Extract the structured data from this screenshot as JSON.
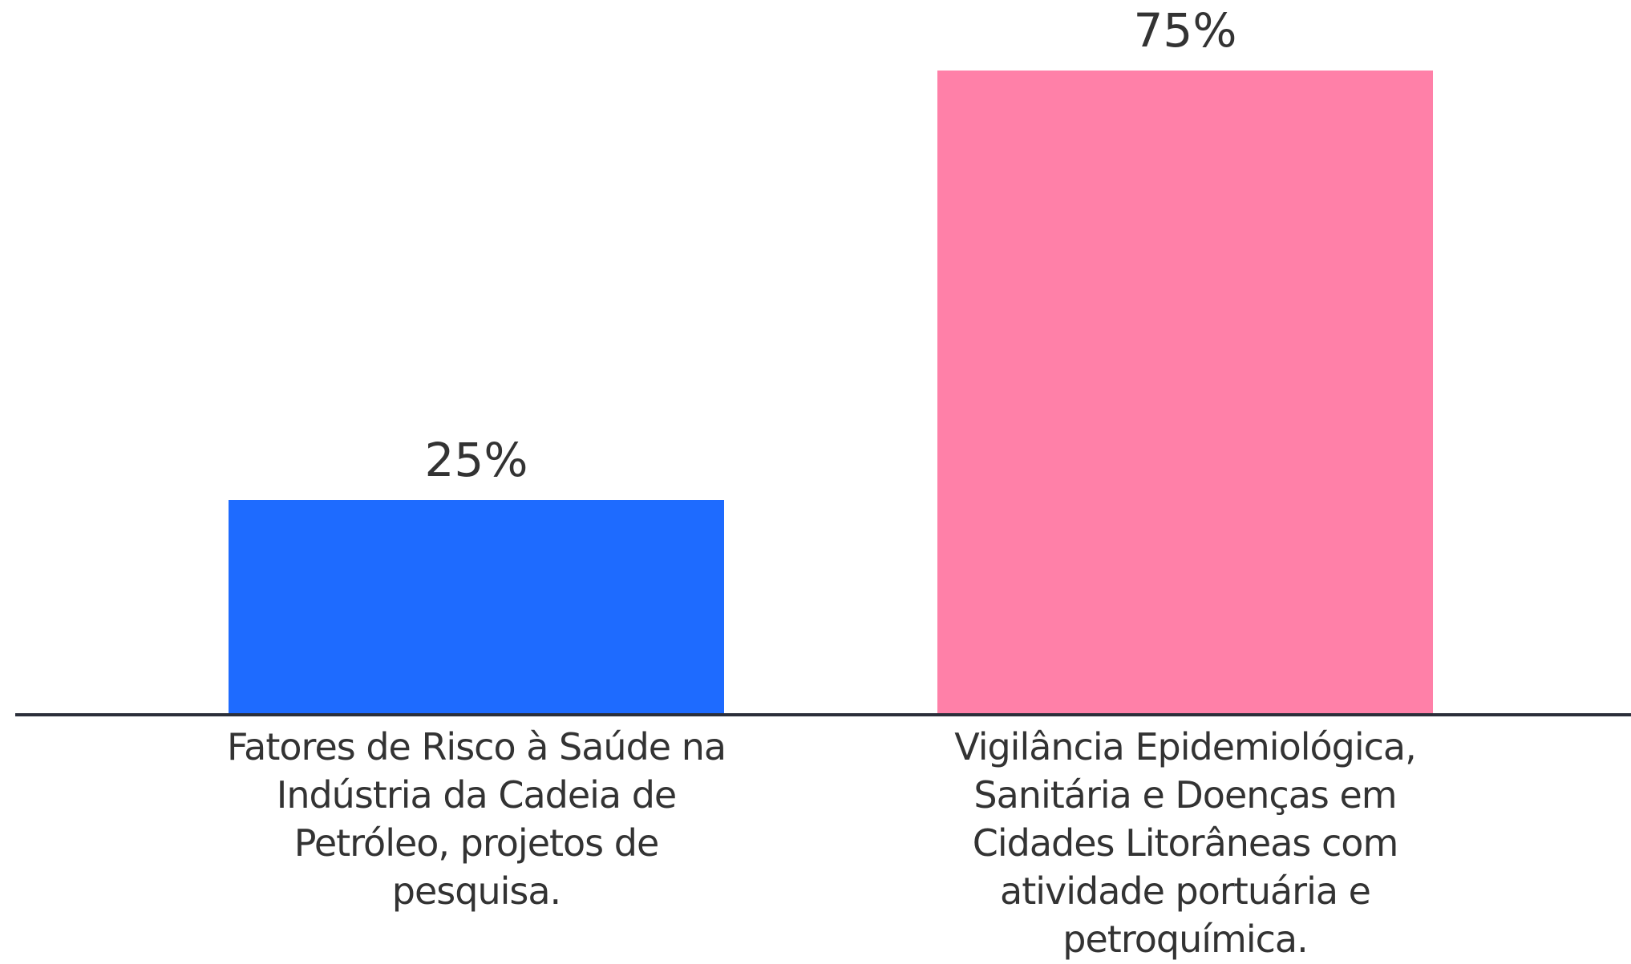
{
  "chart_data": {
    "type": "bar",
    "categories": [
      "Fatores de Risco à Saúde na Indústria da Cadeia de Petróleo, projetos de pesquisa.",
      "Vigilância Epidemiológica, Sanitária e Doenças em Cidades Litorâneas com atividade portuária e petroquímica."
    ],
    "values": [
      25,
      75
    ],
    "value_labels": [
      "25%",
      "75%"
    ],
    "colors": [
      "#1e6bff",
      "#ff80a8"
    ],
    "ylim": [
      0,
      75
    ]
  }
}
